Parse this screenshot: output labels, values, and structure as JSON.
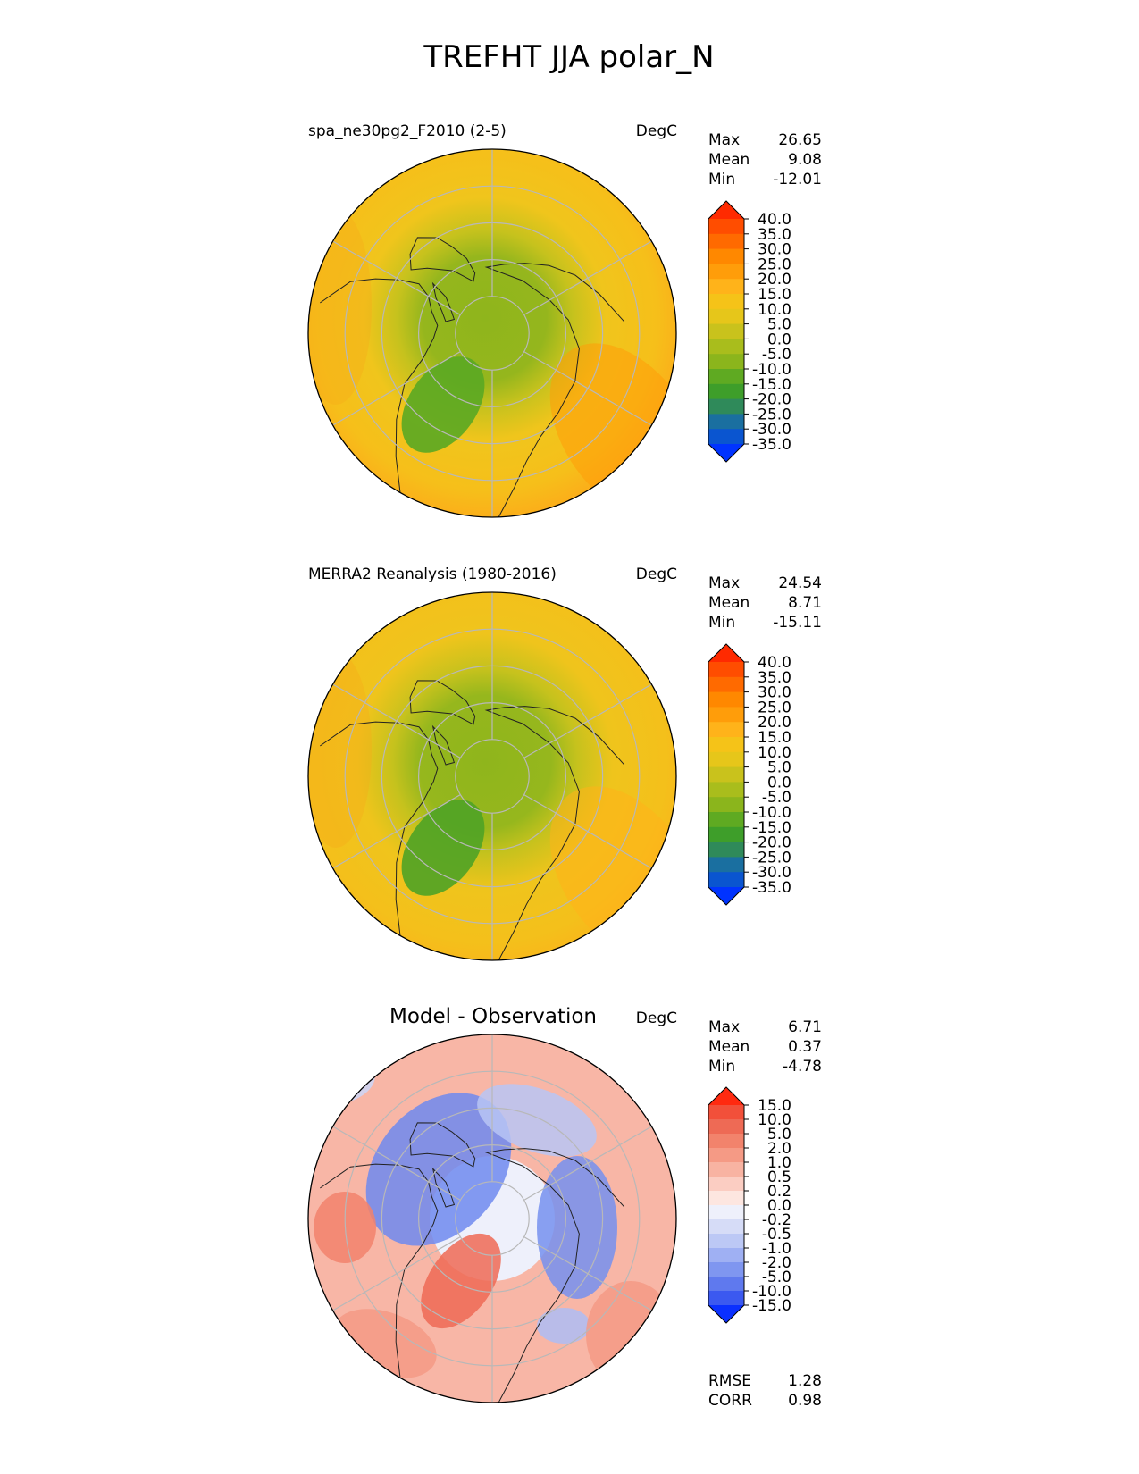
{
  "figure_title": "TREFHT JJA polar_N",
  "chart_data": [
    {
      "type": "heatmap",
      "projection": "north-polar-stereographic",
      "title": "spa_ne30pg2_F2010 (2-5)",
      "units": "DegC",
      "stats": {
        "max_label": "Max",
        "max": "26.65",
        "mean_label": "Mean",
        "mean": "9.08",
        "min_label": "Min",
        "min": "-12.01"
      },
      "colorbar": {
        "levels": [
          "40.0",
          "35.0",
          "30.0",
          "25.0",
          "20.0",
          "15.0",
          "10.0",
          "5.0",
          "0.0",
          "-5.0",
          "-10.0",
          "-15.0",
          "-20.0",
          "-25.0",
          "-30.0",
          "-35.0"
        ],
        "colors": [
          "#ff2a00",
          "#ff4d00",
          "#ff6a00",
          "#ff8800",
          "#ff9d0a",
          "#ffb31a",
          "#f5c318",
          "#e6c61a",
          "#c9c21c",
          "#a9bd1c",
          "#8bb51c",
          "#5faa22",
          "#3e9e2a",
          "#2f8a5a",
          "#1a6fa0",
          "#0a55d0",
          "#0033ff"
        ]
      },
      "scene": "model"
    },
    {
      "type": "heatmap",
      "projection": "north-polar-stereographic",
      "title": "MERRA2 Reanalysis (1980-2016)",
      "units": "DegC",
      "stats": {
        "max_label": "Max",
        "max": "24.54",
        "mean_label": "Mean",
        "mean": "8.71",
        "min_label": "Min",
        "min": "-15.11"
      },
      "colorbar": {
        "levels": [
          "40.0",
          "35.0",
          "30.0",
          "25.0",
          "20.0",
          "15.0",
          "10.0",
          "5.0",
          "0.0",
          "-5.0",
          "-10.0",
          "-15.0",
          "-20.0",
          "-25.0",
          "-30.0",
          "-35.0"
        ],
        "colors": [
          "#ff2a00",
          "#ff4d00",
          "#ff6a00",
          "#ff8800",
          "#ff9d0a",
          "#ffb31a",
          "#f5c318",
          "#e6c61a",
          "#c9c21c",
          "#a9bd1c",
          "#8bb51c",
          "#5faa22",
          "#3e9e2a",
          "#2f8a5a",
          "#1a6fa0",
          "#0a55d0",
          "#0033ff"
        ]
      },
      "scene": "obs"
    },
    {
      "type": "heatmap",
      "projection": "north-polar-stereographic",
      "title": "Model - Observation",
      "units": "DegC",
      "stats": {
        "max_label": "Max",
        "max": "6.71",
        "mean_label": "Mean",
        "mean": "0.37",
        "min_label": "Min",
        "min": "-4.78"
      },
      "metrics": {
        "rmse_label": "RMSE",
        "rmse": "1.28",
        "corr_label": "CORR",
        "corr": "0.98"
      },
      "colorbar": {
        "levels": [
          "15.0",
          "10.0",
          "5.0",
          "2.0",
          "1.0",
          "0.5",
          "0.2",
          "0.0",
          "-0.2",
          "-0.5",
          "-1.0",
          "-2.0",
          "-5.0",
          "-10.0",
          "-15.0"
        ],
        "colors": [
          "#ff2a10",
          "#f2503a",
          "#ee6a55",
          "#f2836c",
          "#f59a85",
          "#f8b3a2",
          "#fbcdc2",
          "#fde6e0",
          "#eef0fb",
          "#d6dcf7",
          "#bcc8f5",
          "#9fb0f3",
          "#7f96f0",
          "#5f79ee",
          "#3b59f0",
          "#0a30ff"
        ]
      },
      "scene": "diff"
    }
  ]
}
